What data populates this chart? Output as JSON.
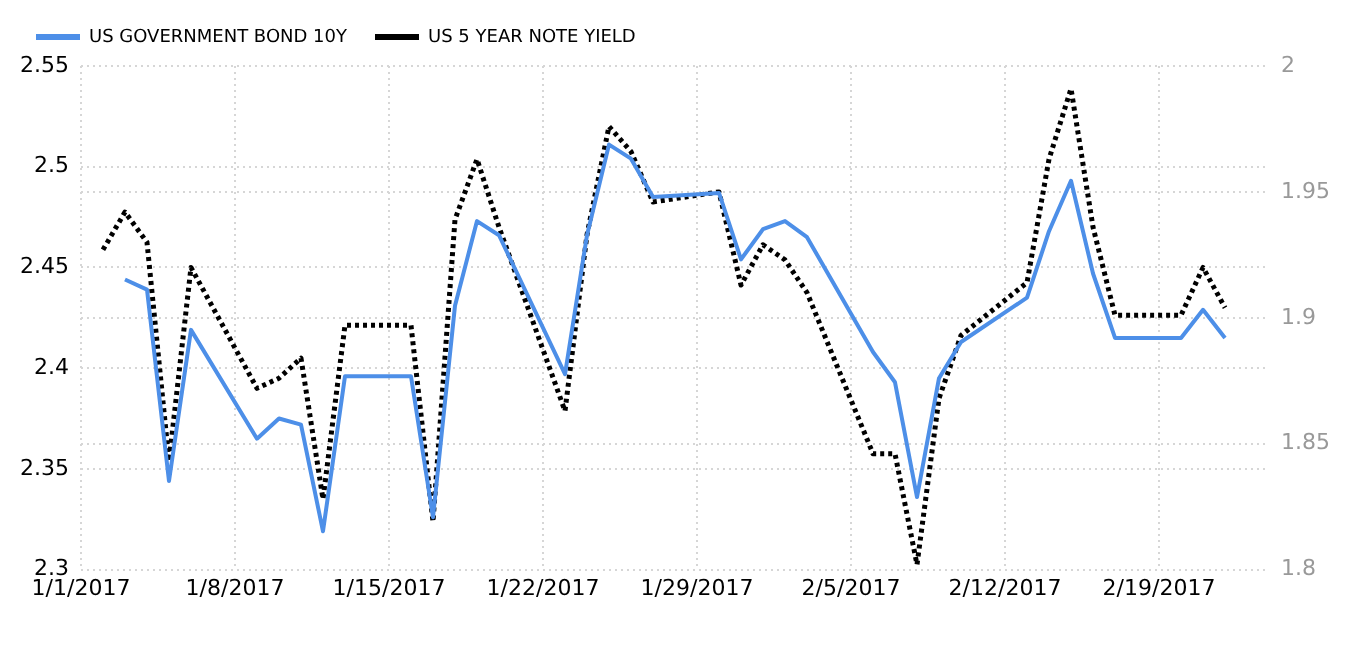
{
  "chart_data": {
    "type": "line",
    "legend": "top left",
    "grid": true,
    "marker": "none",
    "xlim": [
      "2017-01-01",
      "2017-02-24"
    ],
    "xticks": [
      {
        "value": "2017-01-01",
        "label": "1/1/2017"
      },
      {
        "value": "2017-01-08",
        "label": "1/8/2017"
      },
      {
        "value": "2017-01-15",
        "label": "1/15/2017"
      },
      {
        "value": "2017-01-22",
        "label": "1/22/2017"
      },
      {
        "value": "2017-01-29",
        "label": "1/29/2017"
      },
      {
        "value": "2017-02-05",
        "label": "2/5/2017"
      },
      {
        "value": "2017-02-12",
        "label": "2/12/2017"
      },
      {
        "value": "2017-02-19",
        "label": "2/19/2017"
      }
    ],
    "ylim": [
      2.3,
      2.55
    ],
    "yticks": [
      2.3,
      2.35,
      2.4,
      2.45,
      2.5,
      2.55
    ],
    "y2lim": [
      1.8,
      2.0
    ],
    "y2ticks": [
      1.8,
      1.85,
      1.9,
      1.95,
      2
    ],
    "series": [
      {
        "name": "US GOVERNMENT BOND 10Y",
        "color": "#4d8fe8",
        "line_style": "solid",
        "axis": "y",
        "x": [
          "2017-01-03",
          "2017-01-04",
          "2017-01-05",
          "2017-01-06",
          "2017-01-09",
          "2017-01-10",
          "2017-01-11",
          "2017-01-12",
          "2017-01-13",
          "2017-01-16",
          "2017-01-17",
          "2017-01-18",
          "2017-01-19",
          "2017-01-20",
          "2017-01-23",
          "2017-01-24",
          "2017-01-25",
          "2017-01-26",
          "2017-01-27",
          "2017-01-30",
          "2017-01-31",
          "2017-02-01",
          "2017-02-02",
          "2017-02-03",
          "2017-02-06",
          "2017-02-07",
          "2017-02-08",
          "2017-02-09",
          "2017-02-10",
          "2017-02-13",
          "2017-02-14",
          "2017-02-15",
          "2017-02-16",
          "2017-02-17",
          "2017-02-20",
          "2017-02-21",
          "2017-02-22"
        ],
        "values": [
          2.444,
          2.439,
          2.344,
          2.419,
          2.365,
          2.375,
          2.372,
          2.319,
          2.396,
          2.396,
          2.326,
          2.431,
          2.473,
          2.466,
          2.397,
          2.466,
          2.511,
          2.504,
          2.485,
          2.487,
          2.454,
          2.469,
          2.473,
          2.465,
          2.408,
          2.393,
          2.336,
          2.395,
          2.413,
          2.435,
          2.468,
          2.493,
          2.447,
          2.415,
          2.415,
          2.429,
          2.415
        ]
      },
      {
        "name": "US 5 YEAR NOTE YIELD",
        "color": "#000000",
        "line_style": "dotted",
        "axis": "y2",
        "x": [
          "2017-01-02",
          "2017-01-03",
          "2017-01-04",
          "2017-01-05",
          "2017-01-06",
          "2017-01-09",
          "2017-01-10",
          "2017-01-11",
          "2017-01-12",
          "2017-01-13",
          "2017-01-16",
          "2017-01-17",
          "2017-01-18",
          "2017-01-19",
          "2017-01-20",
          "2017-01-23",
          "2017-01-24",
          "2017-01-25",
          "2017-01-26",
          "2017-01-27",
          "2017-01-30",
          "2017-01-31",
          "2017-02-01",
          "2017-02-02",
          "2017-02-03",
          "2017-02-06",
          "2017-02-07",
          "2017-02-08",
          "2017-02-09",
          "2017-02-10",
          "2017-02-13",
          "2017-02-14",
          "2017-02-15",
          "2017-02-16",
          "2017-02-17",
          "2017-02-20",
          "2017-02-21",
          "2017-02-22"
        ],
        "values": [
          1.927,
          1.942,
          1.93,
          1.843,
          1.92,
          1.872,
          1.876,
          1.884,
          1.828,
          1.897,
          1.897,
          1.819,
          1.939,
          1.963,
          1.936,
          1.863,
          1.933,
          1.976,
          1.966,
          1.946,
          1.95,
          1.913,
          1.929,
          1.923,
          1.91,
          1.846,
          1.846,
          1.802,
          1.868,
          1.893,
          1.914,
          1.963,
          1.991,
          1.936,
          1.901,
          1.901,
          1.92,
          1.904
        ]
      }
    ]
  }
}
